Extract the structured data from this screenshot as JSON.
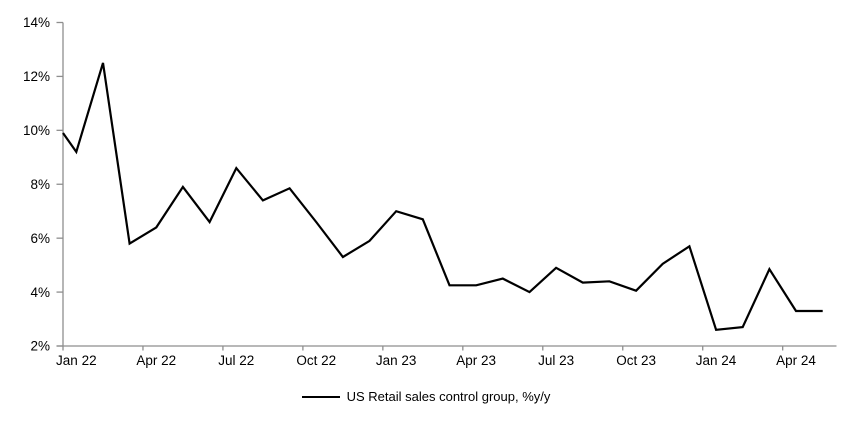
{
  "chart_data": {
    "type": "line",
    "title": "",
    "xlabel": "",
    "ylabel": "",
    "x": [
      "Jan 22",
      "Feb 22",
      "Mar 22",
      "Apr 22",
      "May 22",
      "Jun 22",
      "Jul 22",
      "Aug 22",
      "Sep 22",
      "Oct 22",
      "Nov 22",
      "Dec 22",
      "Jan 23",
      "Feb 23",
      "Mar 23",
      "Apr 23",
      "May 23",
      "Jun 23",
      "Jul 23",
      "Aug 23",
      "Sep 23",
      "Oct 23",
      "Nov 23",
      "Dec 23",
      "Jan 24",
      "Feb 24",
      "Mar 24",
      "Apr 24",
      "May 24"
    ],
    "series": [
      {
        "name": "US Retail sales control group, %y/y",
        "color": "#000000",
        "values": [
          9.2,
          12.5,
          5.8,
          6.4,
          7.9,
          6.6,
          8.6,
          7.4,
          7.85,
          6.6,
          5.3,
          5.9,
          7.0,
          6.7,
          4.25,
          4.25,
          4.5,
          4.0,
          4.9,
          4.35,
          4.4,
          4.05,
          5.05,
          5.7,
          2.6,
          2.7,
          4.85,
          3.3,
          3.3
        ]
      }
    ],
    "lead_in_value_at_axis": 9.9,
    "x_tick_labels": [
      "Jan 22",
      "Apr 22",
      "Jul 22",
      "Oct 22",
      "Jan 23",
      "Apr 23",
      "Jul 23",
      "Oct 23",
      "Jan 24",
      "Apr 24"
    ],
    "x_tick_every": 3,
    "x_mode": "between-ticks",
    "ylim": [
      2,
      14
    ],
    "yticks": [
      2,
      4,
      6,
      8,
      10,
      12,
      14
    ],
    "ytick_labels": [
      "2%",
      "4%",
      "6%",
      "8%",
      "10%",
      "12%",
      "14%"
    ],
    "grid": "off",
    "legend_position": "bottom-center",
    "axis_color": "#8e8e8e",
    "text_color": "#000000",
    "background_color": "#ffffff"
  }
}
